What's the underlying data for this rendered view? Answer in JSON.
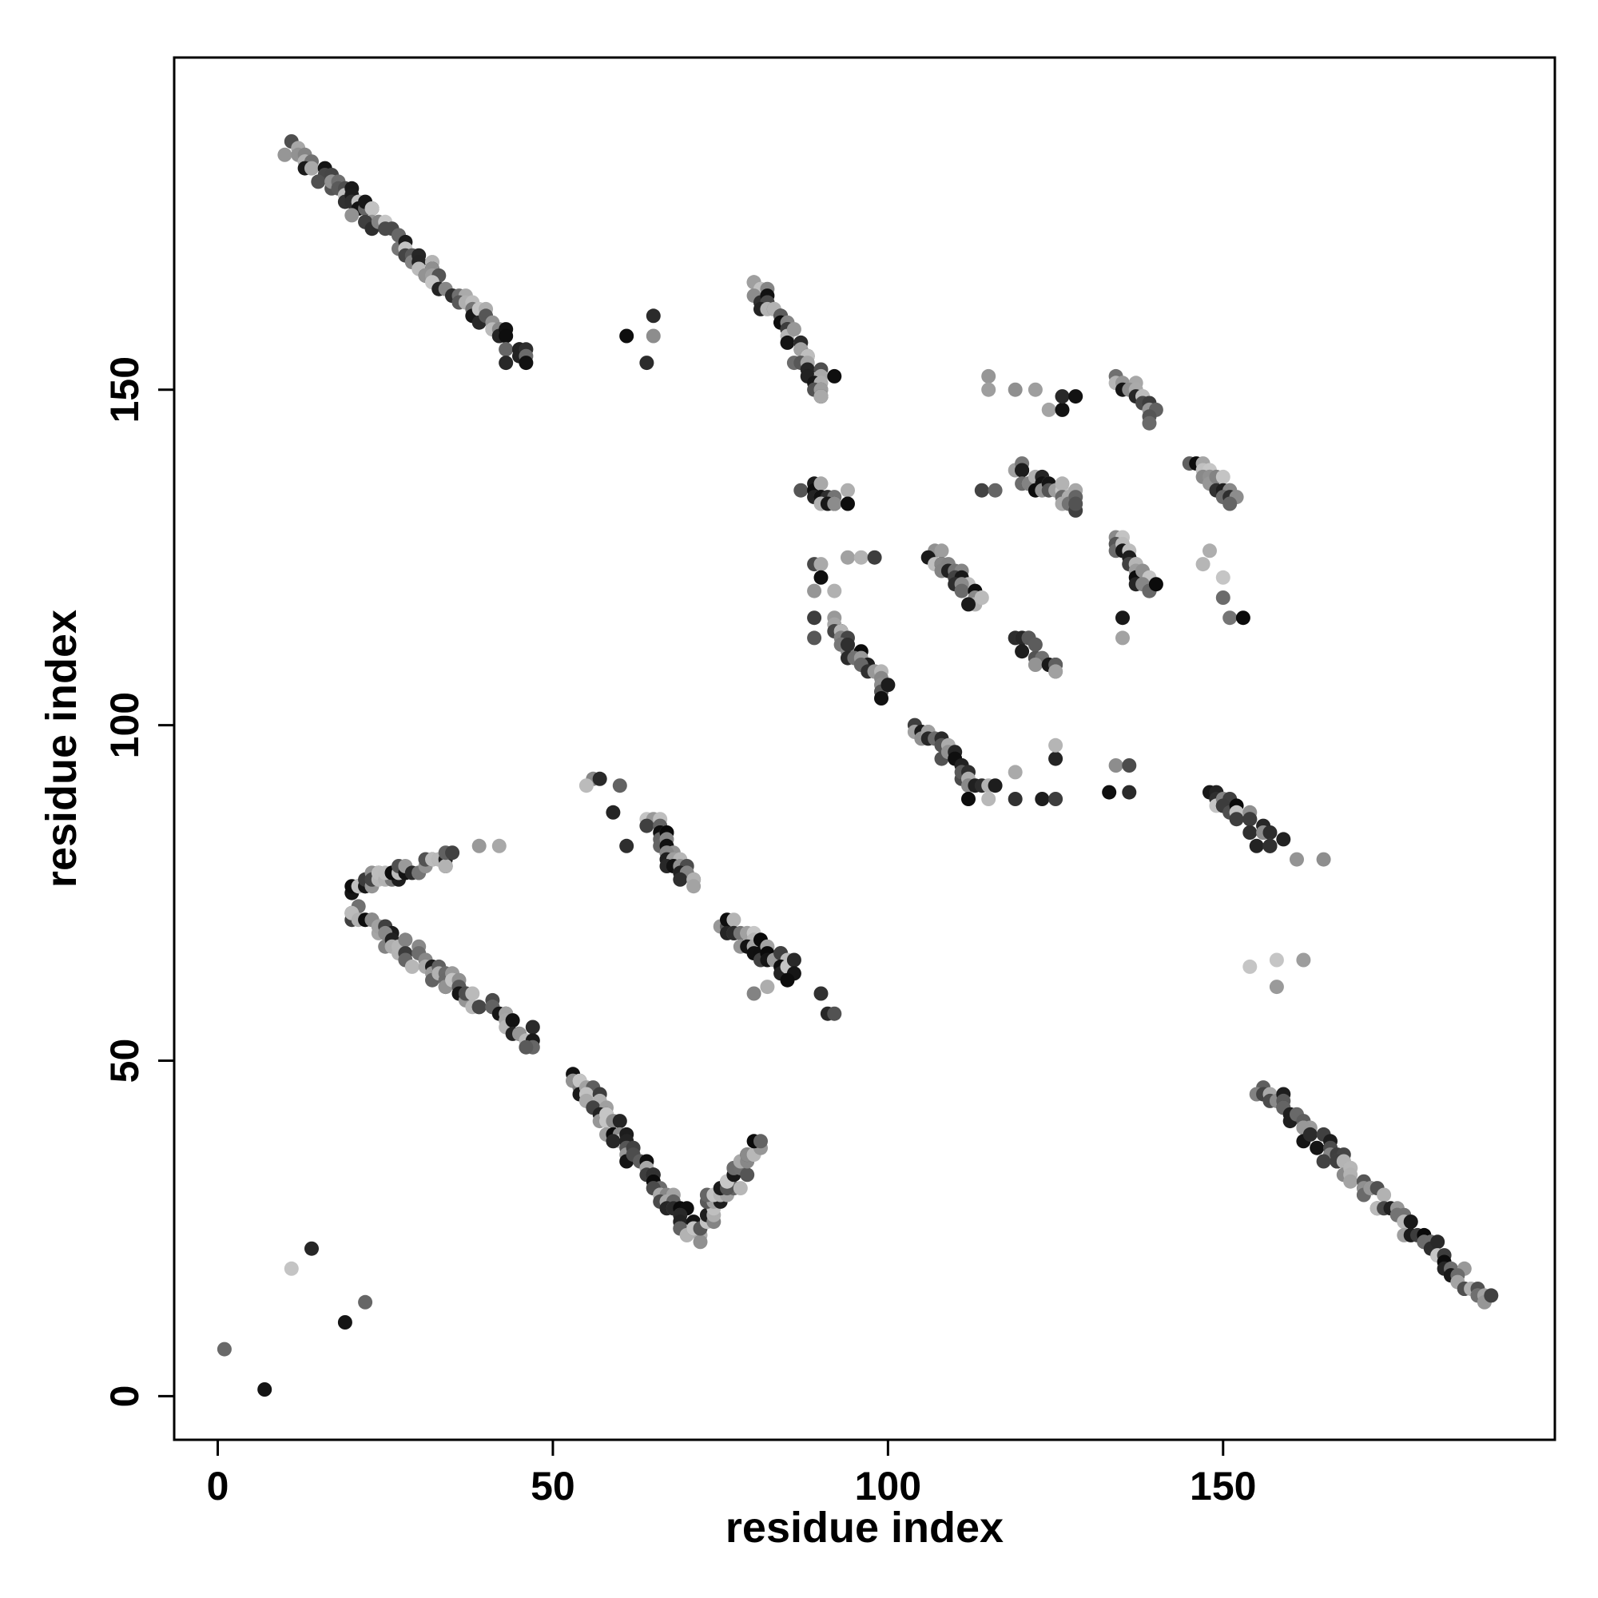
{
  "chart_data": {
    "type": "scatter",
    "title": "",
    "xlabel": "residue index",
    "ylabel": "residue index",
    "xlim": [
      -6.5,
      199.5
    ],
    "ylim": [
      -6.5,
      199.5
    ],
    "xticks": [
      0,
      50,
      100,
      150
    ],
    "yticks": [
      0,
      50,
      100,
      150
    ],
    "grid": false,
    "legend": "none",
    "marker_color": "#000000",
    "marker_shading": "grayscale; darker points indicate stronger contact",
    "segments": [
      {
        "x0": 11,
        "y0": 186,
        "x1": 46,
        "y1": 155
      },
      {
        "x0": 80,
        "y0": 166,
        "x1": 91,
        "y1": 149
      },
      {
        "x0": 134,
        "y0": 152,
        "x1": 140,
        "y1": 146
      },
      {
        "x0": 146,
        "y0": 140,
        "x1": 152,
        "y1": 133
      },
      {
        "x0": 119,
        "y0": 138,
        "x1": 128,
        "y1": 133
      },
      {
        "x0": 88,
        "y0": 136,
        "x1": 92,
        "y1": 133
      },
      {
        "x0": 134,
        "y0": 128,
        "x1": 139,
        "y1": 120
      },
      {
        "x0": 107,
        "y0": 126,
        "x1": 113,
        "y1": 118
      },
      {
        "x0": 91,
        "y0": 115,
        "x1": 100,
        "y1": 105
      },
      {
        "x0": 119,
        "y0": 113,
        "x1": 125,
        "y1": 108
      },
      {
        "x0": 104,
        "y0": 100,
        "x1": 115,
        "y1": 90
      },
      {
        "x0": 148,
        "y0": 90,
        "x1": 158,
        "y1": 82
      },
      {
        "x0": 56,
        "y0": 92,
        "x1": 56,
        "y1": 91
      },
      {
        "x0": 64,
        "y0": 86,
        "x1": 71,
        "y1": 76
      },
      {
        "x0": 20,
        "y0": 76,
        "x1": 35,
        "y1": 80
      },
      {
        "x0": 20,
        "y0": 72,
        "x1": 47,
        "y1": 53
      },
      {
        "x0": 75,
        "y0": 71,
        "x1": 86,
        "y1": 63
      },
      {
        "x0": 53,
        "y0": 48,
        "x1": 71,
        "y1": 24
      },
      {
        "x0": 71,
        "y0": 24,
        "x1": 81,
        "y1": 38
      },
      {
        "x0": 156,
        "y0": 46,
        "x1": 189,
        "y1": 14
      }
    ],
    "scattered_points": [
      [
        1,
        7
      ],
      [
        7,
        1
      ],
      [
        11,
        19
      ],
      [
        14,
        22
      ],
      [
        19,
        11
      ],
      [
        22,
        14
      ],
      [
        60,
        91
      ],
      [
        59,
        87
      ],
      [
        61,
        82
      ],
      [
        80,
        60
      ],
      [
        82,
        61
      ],
      [
        90,
        60
      ],
      [
        91,
        57
      ],
      [
        92,
        57
      ],
      [
        61,
        158
      ],
      [
        65,
        161
      ],
      [
        65,
        158
      ],
      [
        64,
        154
      ],
      [
        92,
        152
      ],
      [
        115,
        152
      ],
      [
        115,
        150
      ],
      [
        119,
        150
      ],
      [
        122,
        150
      ],
      [
        124,
        147
      ],
      [
        126,
        147
      ],
      [
        126,
        149
      ],
      [
        128,
        149
      ],
      [
        94,
        135
      ],
      [
        94,
        133
      ],
      [
        114,
        135
      ],
      [
        116,
        135
      ],
      [
        94,
        125
      ],
      [
        96,
        125
      ],
      [
        98,
        125
      ],
      [
        89,
        120
      ],
      [
        92,
        120
      ],
      [
        89,
        116
      ],
      [
        89,
        113
      ],
      [
        89,
        124
      ],
      [
        90,
        124
      ],
      [
        90,
        122
      ],
      [
        135,
        116
      ],
      [
        135,
        113
      ],
      [
        148,
        126
      ],
      [
        147,
        124
      ],
      [
        150,
        122
      ],
      [
        150,
        119
      ],
      [
        151,
        116
      ],
      [
        153,
        116
      ],
      [
        119,
        93
      ],
      [
        119,
        89
      ],
      [
        123,
        89
      ],
      [
        125,
        89
      ],
      [
        125,
        95
      ],
      [
        125,
        97
      ],
      [
        133,
        90
      ],
      [
        134,
        94
      ],
      [
        136,
        94
      ],
      [
        136,
        90
      ],
      [
        112,
        89
      ],
      [
        115,
        89
      ],
      [
        42,
        82
      ],
      [
        39,
        82
      ],
      [
        165,
        80
      ],
      [
        161,
        80
      ],
      [
        154,
        64
      ],
      [
        158,
        65
      ],
      [
        158,
        61
      ],
      [
        162,
        65
      ],
      [
        43,
        154
      ],
      [
        46,
        154
      ]
    ]
  }
}
